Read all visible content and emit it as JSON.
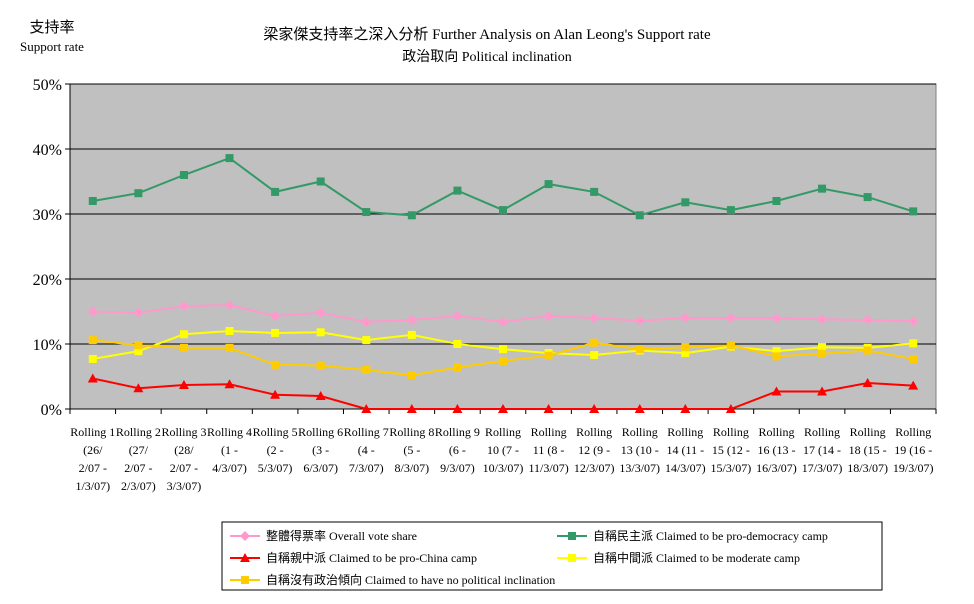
{
  "chart_data": {
    "type": "line",
    "title": "梁家傑支持率之深入分析 Further Analysis on Alan Leong's Support rate",
    "subtitle": "政治取向 Political inclination",
    "ylabel_line1": "支持率",
    "ylabel_line2": "Support rate",
    "xlabel": "",
    "ylim": [
      0,
      50
    ],
    "yticks": [
      "0%",
      "10%",
      "20%",
      "30%",
      "40%",
      "50%"
    ],
    "ytick_values": [
      0,
      10,
      20,
      30,
      40,
      50
    ],
    "grid": true,
    "legend_position": "bottom",
    "categories": [
      [
        "Rolling 1",
        "(26/",
        "2/07 -",
        "1/3/07)"
      ],
      [
        "Rolling 2",
        "(27/",
        "2/07 -",
        "2/3/07)"
      ],
      [
        "Rolling 3",
        "(28/",
        "2/07 -",
        "3/3/07)"
      ],
      [
        "Rolling 4",
        "(1 -",
        "4/3/07)"
      ],
      [
        "Rolling 5",
        "(2 -",
        "5/3/07)"
      ],
      [
        "Rolling 6",
        "(3 -",
        "6/3/07)"
      ],
      [
        "Rolling 7",
        "(4 -",
        "7/3/07)"
      ],
      [
        "Rolling 8",
        "(5 -",
        "8/3/07)"
      ],
      [
        "Rolling 9",
        "(6 -",
        "9/3/07)"
      ],
      [
        "Rolling",
        "10 (7 -",
        "10/3/07)"
      ],
      [
        "Rolling",
        "11 (8 -",
        "11/3/07)"
      ],
      [
        "Rolling",
        "12 (9 -",
        "12/3/07)"
      ],
      [
        "Rolling",
        "13 (10 -",
        "13/3/07)"
      ],
      [
        "Rolling",
        "14 (11 -",
        "14/3/07)"
      ],
      [
        "Rolling",
        "15 (12 -",
        "15/3/07)"
      ],
      [
        "Rolling",
        "16 (13 -",
        "16/3/07)"
      ],
      [
        "Rolling",
        "17 (14 -",
        "17/3/07)"
      ],
      [
        "Rolling",
        "18 (15 -",
        "18/3/07)"
      ],
      [
        "Rolling",
        "19 (16 -",
        "19/3/07)"
      ]
    ],
    "series": [
      {
        "name": "整體得票率 Overall vote share",
        "color": "#ff99cc",
        "marker": "diamond",
        "values": [
          15.0,
          14.8,
          15.8,
          16.0,
          14.3,
          14.8,
          13.4,
          13.7,
          14.3,
          13.4,
          14.3,
          14.0,
          13.6,
          14.0,
          14.0,
          14.0,
          13.8,
          13.7,
          13.5
        ]
      },
      {
        "name": "自稱民主派 Claimed to be pro-democracy camp",
        "color": "#339966",
        "marker": "square",
        "values": [
          32.0,
          33.2,
          36.0,
          38.6,
          33.4,
          35.0,
          30.3,
          29.8,
          33.6,
          30.6,
          34.6,
          33.4,
          29.8,
          31.8,
          30.6,
          32.0,
          33.9,
          32.6,
          30.4
        ]
      },
      {
        "name": "自稱親中派 Claimed to be pro-China camp",
        "color": "#ff0000",
        "marker": "triangle",
        "values": [
          4.7,
          3.2,
          3.7,
          3.8,
          2.2,
          2.0,
          0.0,
          0.0,
          0.0,
          0.0,
          0.0,
          0.0,
          0.0,
          0.0,
          0.0,
          2.7,
          2.7,
          4.0,
          3.6
        ]
      },
      {
        "name": "自稱中間派 Claimed to be moderate camp",
        "color": "#ffff00",
        "marker": "square",
        "values": [
          7.7,
          8.9,
          11.5,
          12.0,
          11.7,
          11.8,
          10.6,
          11.4,
          10.0,
          9.2,
          8.6,
          8.3,
          9.0,
          8.6,
          9.6,
          8.9,
          9.5,
          9.4,
          10.1
        ]
      },
      {
        "name": "自稱沒有政治傾向 Claimed to have no political inclination",
        "color": "#ffcc00",
        "marker": "square",
        "values": [
          10.6,
          9.8,
          9.4,
          9.4,
          6.8,
          6.7,
          6.0,
          5.2,
          6.4,
          7.4,
          8.2,
          10.2,
          9.2,
          9.5,
          9.8,
          8.1,
          8.5,
          9.0,
          7.7
        ]
      }
    ]
  }
}
